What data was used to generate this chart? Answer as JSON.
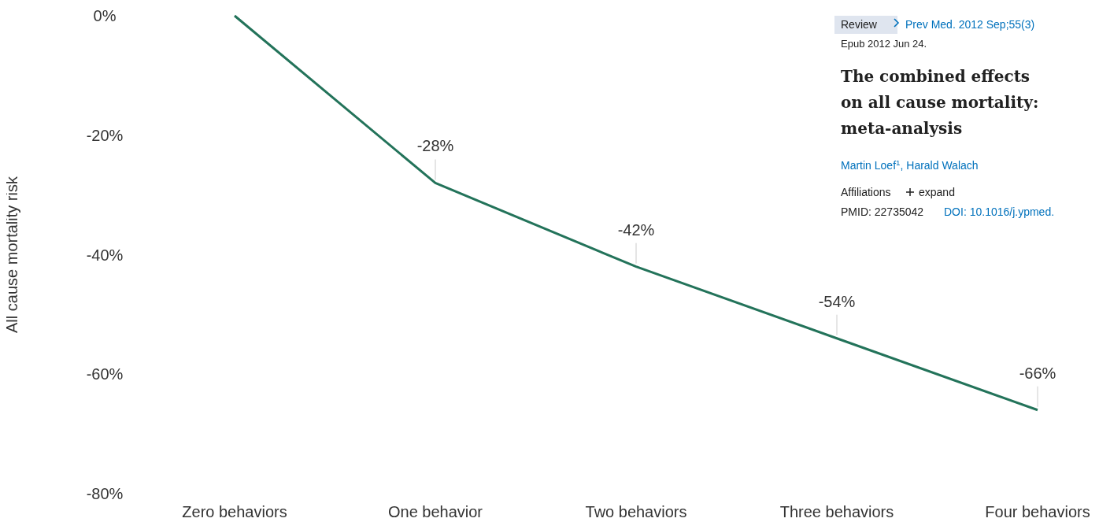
{
  "chart_data": {
    "type": "line",
    "ylabel": "All cause mortality risk",
    "categories": [
      "Zero behaviors",
      "One behavior",
      "Two behaviors",
      "Three behaviors",
      "Four behaviors"
    ],
    "series": [
      {
        "color": "#23735a",
        "values": [
          0,
          -28,
          -42,
          -54,
          -66
        ]
      }
    ],
    "ylim": [
      -80,
      0
    ],
    "yticks": [
      {
        "value": 0,
        "label": "0%"
      },
      {
        "value": -20,
        "label": "-20%"
      },
      {
        "value": -40,
        "label": "-40%"
      },
      {
        "value": -60,
        "label": "-60%"
      },
      {
        "value": -80,
        "label": "-80%"
      }
    ],
    "value_labels": [
      null,
      "-28%",
      "-42%",
      "-54%",
      "-66%"
    ],
    "grid": false,
    "marker": "none",
    "line_style": "solid",
    "annotations": [
      "Review",
      "Prev Med. 2012 Sep;55(3)",
      "Epub 2012 Jun 24.",
      "The combined effects",
      "on all cause mortality:",
      "meta-analysis",
      "Martin Loef$^{1}$, Harald Walach",
      "Affiliations",
      "expand",
      "PMID: 22735042",
      "DOI: 10.1016/j.ypmed."
    ]
  }
}
